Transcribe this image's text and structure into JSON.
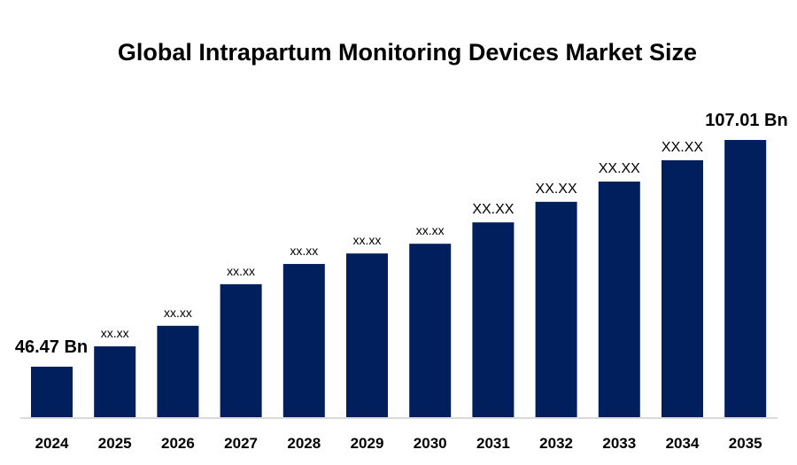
{
  "chart_data": {
    "type": "bar",
    "title": "Global Intrapartum Monitoring Devices Market Size",
    "xlabel": "",
    "ylabel": "",
    "categories": [
      "2024",
      "2025",
      "2026",
      "2027",
      "2028",
      "2029",
      "2030",
      "2031",
      "2032",
      "2033",
      "2034",
      "2035"
    ],
    "values": [
      46.47,
      51.9,
      57.4,
      68.5,
      73.9,
      76.7,
      79.3,
      85.0,
      90.5,
      95.9,
      101.6,
      107.01
    ],
    "data_labels": [
      "46.47 Bn",
      "xx.xx",
      "xx.xx",
      "xx.xx",
      "xx.xx",
      "xx.xx",
      "xx.xx",
      "XX.XX",
      "XX.XX",
      "XX.XX",
      "XX.XX",
      "107.01 Bn"
    ],
    "ylim": [
      33,
      110
    ],
    "grid": false,
    "legend": "none",
    "bar_color": "#001F5C",
    "axis_color": "#D9D9D9"
  }
}
